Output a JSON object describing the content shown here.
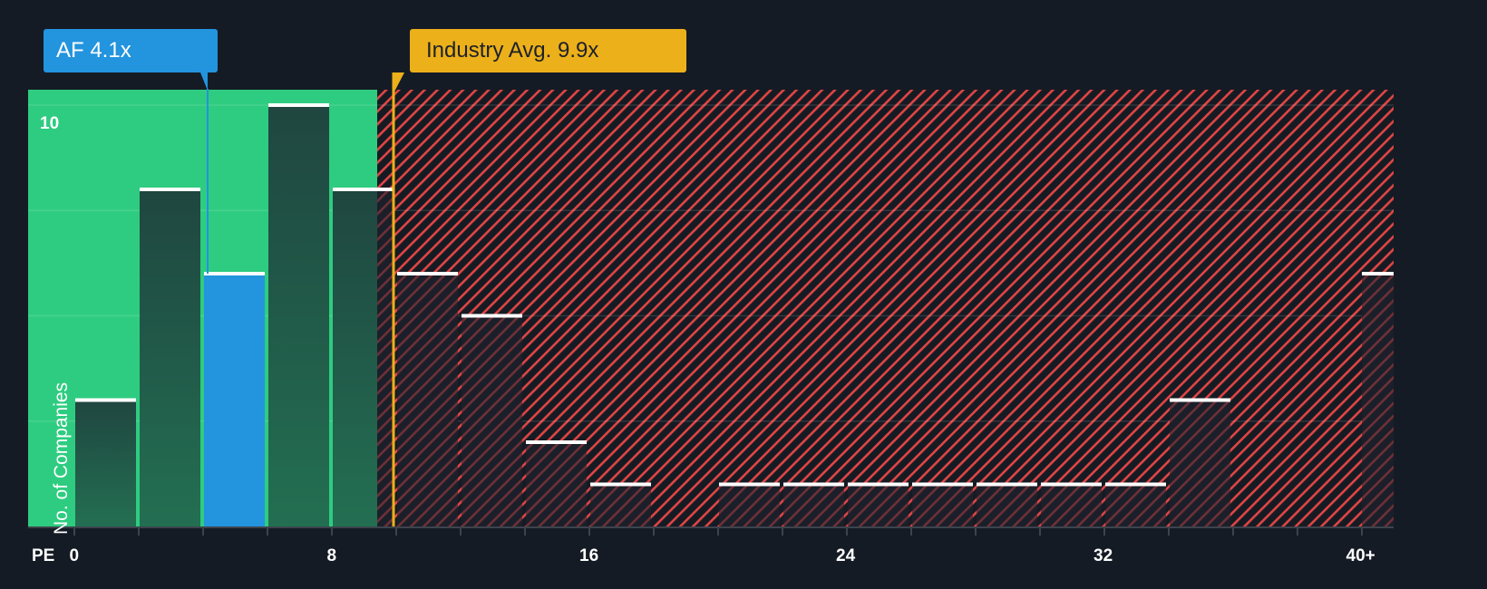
{
  "chart_data": {
    "type": "bar",
    "title": "",
    "xlabel": "PE",
    "ylabel": "No. of Companies",
    "x_tick_labels": [
      "0",
      "8",
      "16",
      "24",
      "32",
      "40+"
    ],
    "y_tick_labels": [
      "10"
    ],
    "ylim": [
      0,
      10.4
    ],
    "bin_width": 2,
    "categories": [
      "0-2",
      "2-4",
      "4-6",
      "6-8",
      "8-10",
      "10-12",
      "12-14",
      "14-16",
      "16-18",
      "18-20",
      "20-22",
      "22-24",
      "24-26",
      "26-28",
      "28-30",
      "30-32",
      "32-34",
      "34-36",
      "36-38",
      "38-40",
      "40+"
    ],
    "values": [
      3,
      8,
      6,
      10,
      8,
      6,
      5,
      2,
      1,
      0,
      1,
      1,
      1,
      1,
      1,
      1,
      1,
      3,
      0,
      0,
      6
    ],
    "highlight_bin_index": 2,
    "annotations": [
      {
        "label": "AF 4.1x",
        "x": 4.1,
        "color": "#2394de"
      },
      {
        "label": "Industry Avg. 9.9x",
        "x": 9.9,
        "color": "#ecb01a"
      }
    ],
    "regions": [
      {
        "name": "below-average",
        "from": 0,
        "to": 9.9,
        "color": "#2ecc80"
      },
      {
        "name": "above-average",
        "from": 9.9,
        "to": 42,
        "color": "#e04545",
        "pattern": "diagonal-hatch"
      }
    ],
    "grid": true,
    "legend": null
  },
  "labels": {
    "company_callout": "AF 4.1x",
    "industry_callout": "Industry Avg. 9.9x",
    "x_axis_title": "PE",
    "y_axis_title": "No. of Companies",
    "y_tick_top": "10"
  },
  "colors": {
    "background": "#151b24",
    "good_zone": "#2ecc80",
    "bad_zone_hatch": "#e04545",
    "company": "#2394de",
    "industry": "#ecb01a",
    "bar_dark": "#1f4a3f"
  }
}
